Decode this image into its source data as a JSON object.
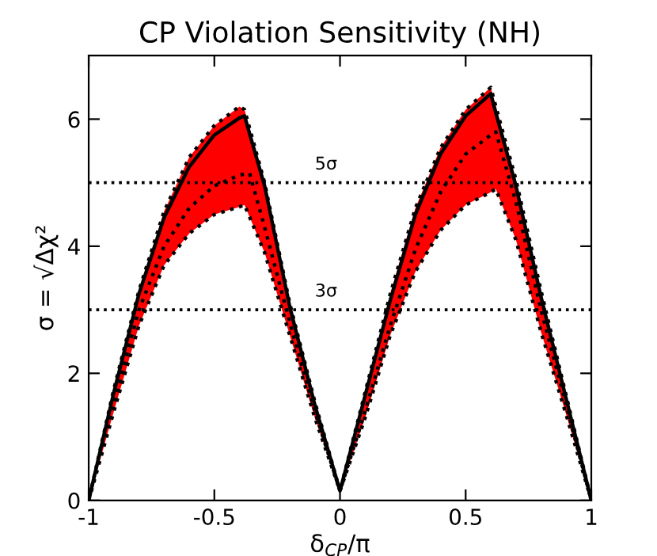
{
  "chart_data": {
    "type": "line",
    "title": "CP Violation Sensitivity (NH)",
    "xlabel": "δ$_{CP}$/π",
    "ylabel": "σ = √Δχ²",
    "xlim": [
      -1,
      1
    ],
    "xticks": [
      -1,
      -0.5,
      0,
      0.5,
      1
    ],
    "ylim": [
      0,
      7
    ],
    "yticks": [
      0,
      2,
      4,
      6
    ],
    "grid": false,
    "legend": false,
    "x": [
      -1,
      -0.9,
      -0.8,
      -0.7,
      -0.6,
      -0.5,
      -0.4,
      -0.38,
      -0.3,
      -0.2,
      -0.1,
      0,
      0.1,
      0.2,
      0.3,
      0.4,
      0.5,
      0.6,
      0.62,
      0.7,
      0.8,
      0.9,
      1
    ],
    "series": [
      {
        "color": "#000000",
        "line_style": "solid",
        "upper": [
          0,
          1.75,
          3.3,
          4.55,
          5.4,
          5.9,
          6.2,
          6.15,
          5.0,
          3.1,
          1.55,
          0.15,
          1.7,
          3.25,
          4.6,
          5.55,
          6.15,
          6.5,
          6.2,
          5.05,
          3.3,
          1.65,
          0
        ],
        "lower": [
          0,
          1.4,
          2.75,
          3.7,
          4.2,
          4.5,
          4.62,
          4.65,
          3.9,
          2.6,
          1.3,
          0.15,
          1.3,
          2.6,
          3.6,
          4.25,
          4.65,
          4.85,
          4.9,
          4.1,
          2.65,
          1.35,
          0
        ],
        "values": [
          0,
          1.7,
          3.25,
          4.45,
          5.25,
          5.75,
          6.02,
          6.05,
          4.95,
          3.05,
          1.5,
          0.15,
          1.65,
          3.15,
          4.5,
          5.45,
          6.05,
          6.4,
          6.1,
          4.95,
          3.2,
          1.6,
          0
        ]
      },
      {
        "color": "#000000",
        "line_style": "dotted",
        "x": [
          -1,
          -0.9,
          -0.8,
          -0.7,
          -0.6,
          -0.5,
          -0.4,
          -0.36,
          -0.3,
          -0.2,
          -0.1,
          0,
          0.1,
          0.2,
          0.3,
          0.4,
          0.5,
          0.6,
          0.62,
          0.7,
          0.8,
          0.9,
          1
        ],
        "values": [
          0,
          1.55,
          3.0,
          4.0,
          4.6,
          4.95,
          5.12,
          5.15,
          4.3,
          2.8,
          1.4,
          0.15,
          1.4,
          2.75,
          3.95,
          4.85,
          5.45,
          5.75,
          5.8,
          4.7,
          3.0,
          1.5,
          0
        ]
      }
    ],
    "ref_lines": [
      {
        "axis": "y",
        "value": 5,
        "label": "5σ",
        "color": "#000000",
        "line_style": "dotted"
      },
      {
        "axis": "y",
        "value": 3,
        "label": "3σ",
        "color": "#000000",
        "line_style": "dotted"
      }
    ]
  }
}
